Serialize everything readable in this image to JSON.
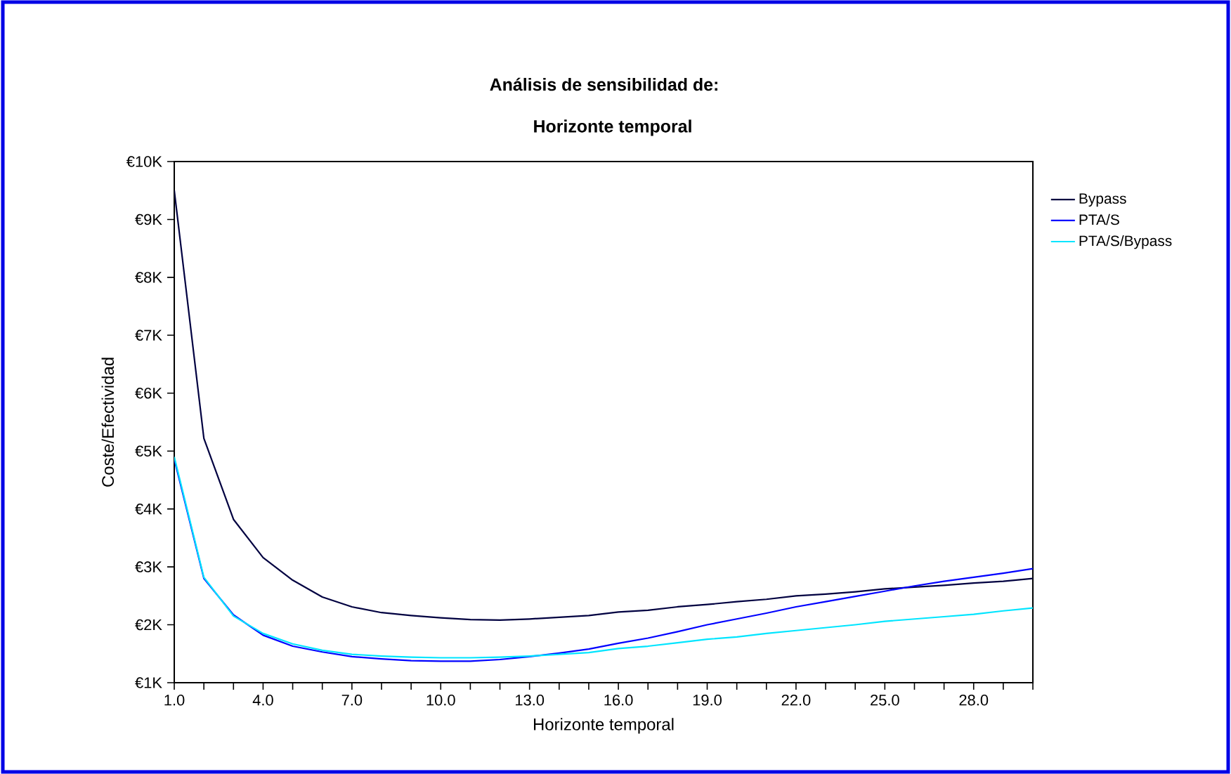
{
  "chart_data": {
    "type": "line",
    "title": "Análisis de sensibilidad de:",
    "subtitle": "Horizonte temporal",
    "xlabel": "Horizonte temporal",
    "ylabel": "Coste/Efectividad",
    "x": [
      1,
      2,
      3,
      4,
      5,
      6,
      7,
      8,
      9,
      10,
      11,
      12,
      13,
      14,
      15,
      16,
      17,
      18,
      19,
      20,
      21,
      22,
      23,
      24,
      25,
      26,
      27,
      28,
      29,
      30
    ],
    "series": [
      {
        "name": "Bypass",
        "color": "#000040",
        "values": [
          9500,
          5220,
          3820,
          3160,
          2770,
          2480,
          2310,
          2210,
          2160,
          2120,
          2090,
          2080,
          2100,
          2130,
          2160,
          2220,
          2250,
          2310,
          2350,
          2400,
          2440,
          2500,
          2530,
          2570,
          2620,
          2650,
          2680,
          2720,
          2750,
          2800
        ]
      },
      {
        "name": "PTA/S",
        "color": "#0000ff",
        "values": [
          4860,
          2800,
          2170,
          1820,
          1630,
          1530,
          1450,
          1410,
          1380,
          1370,
          1370,
          1400,
          1450,
          1510,
          1580,
          1680,
          1770,
          1880,
          2000,
          2100,
          2200,
          2310,
          2400,
          2490,
          2580,
          2670,
          2750,
          2820,
          2890,
          2970
        ]
      },
      {
        "name": "PTA/S/Bypass",
        "color": "#00e5ff",
        "values": [
          4900,
          2820,
          2150,
          1850,
          1670,
          1560,
          1490,
          1460,
          1440,
          1430,
          1430,
          1440,
          1460,
          1490,
          1520,
          1590,
          1630,
          1690,
          1750,
          1790,
          1850,
          1900,
          1950,
          2000,
          2060,
          2100,
          2140,
          2180,
          2240,
          2290
        ]
      }
    ],
    "xlim": [
      1,
      30
    ],
    "ylim": [
      1000,
      10000
    ],
    "xticks": [
      {
        "value": 1,
        "label": "1.0"
      },
      {
        "value": 2,
        "label": null
      },
      {
        "value": 3,
        "label": null
      },
      {
        "value": 4,
        "label": "4.0"
      },
      {
        "value": 5,
        "label": null
      },
      {
        "value": 6,
        "label": null
      },
      {
        "value": 7,
        "label": "7.0"
      },
      {
        "value": 8,
        "label": null
      },
      {
        "value": 9,
        "label": null
      },
      {
        "value": 10,
        "label": "10.0"
      },
      {
        "value": 11,
        "label": null
      },
      {
        "value": 12,
        "label": null
      },
      {
        "value": 13,
        "label": "13.0"
      },
      {
        "value": 14,
        "label": null
      },
      {
        "value": 15,
        "label": null
      },
      {
        "value": 16,
        "label": "16.0"
      },
      {
        "value": 17,
        "label": null
      },
      {
        "value": 18,
        "label": null
      },
      {
        "value": 19,
        "label": "19.0"
      },
      {
        "value": 20,
        "label": null
      },
      {
        "value": 21,
        "label": null
      },
      {
        "value": 22,
        "label": "22.0"
      },
      {
        "value": 23,
        "label": null
      },
      {
        "value": 24,
        "label": null
      },
      {
        "value": 25,
        "label": "25.0"
      },
      {
        "value": 26,
        "label": null
      },
      {
        "value": 27,
        "label": null
      },
      {
        "value": 28,
        "label": "28.0"
      },
      {
        "value": 29,
        "label": null
      },
      {
        "value": 30,
        "label": null
      }
    ],
    "yticks": [
      {
        "value": 1000,
        "label": "€1K"
      },
      {
        "value": 2000,
        "label": "€2K"
      },
      {
        "value": 3000,
        "label": "€3K"
      },
      {
        "value": 4000,
        "label": "€4K"
      },
      {
        "value": 5000,
        "label": "€5K"
      },
      {
        "value": 6000,
        "label": "€6K"
      },
      {
        "value": 7000,
        "label": "€7K"
      },
      {
        "value": 8000,
        "label": "€8K"
      },
      {
        "value": 9000,
        "label": "€9K"
      },
      {
        "value": 10000,
        "label": "€10K"
      }
    ],
    "grid": false,
    "legend": "right",
    "marker": "none",
    "line_style": "solid"
  }
}
